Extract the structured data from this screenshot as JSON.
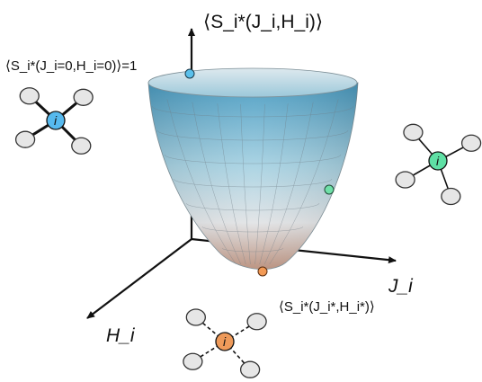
{
  "axes": {
    "vertical_label": "⟨S_i*(J_i,H_i)⟩",
    "j_axis_label": "J_i",
    "h_axis_label": "H_i"
  },
  "annotations": {
    "top_point_label": "⟨S_i*(J_i=0,H_i=0)⟩=1",
    "minimum_point_label": "⟨S_i*(J_i*,H_i*)⟩"
  },
  "nodes": {
    "center_label": "i"
  },
  "colors": {
    "surface_top": "#5aa9cc",
    "surface_bottom": "#c9a99a",
    "top_point": "#5bc0eb",
    "mid_point": "#6fe0a8",
    "min_point": "#f39a55",
    "node_blue": "#56b9ee",
    "node_green": "#5fe0a5",
    "node_orange": "#ee9a5a",
    "neighbor_fill": "#e6e6e6"
  }
}
